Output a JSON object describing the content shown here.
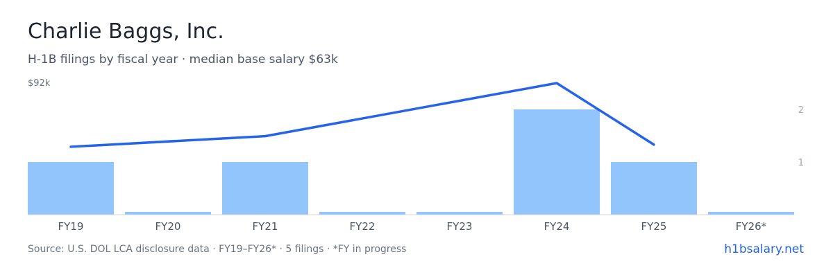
{
  "header": {
    "title": "Charlie Baggs, Inc.",
    "subtitle": "H-1B filings by fiscal year · median base salary $63k"
  },
  "footer": {
    "source": "Source: U.S. DOL LCA disclosure data · FY19–FY26* · 5 filings · *FY in progress",
    "site": "h1bsalary.net"
  },
  "colors": {
    "bar": "#93c5fd",
    "line": "#2563eb",
    "axis_text": "#6b7280",
    "right_axis_text": "#9ca3af",
    "baseline": "#d1d5db"
  },
  "chart_data": {
    "type": "bar",
    "categories": [
      "FY19",
      "FY20",
      "FY21",
      "FY22",
      "FY23",
      "FY24",
      "FY25",
      "FY26*"
    ],
    "series": [
      {
        "kind": "bar",
        "axis": "right",
        "values": [
          1,
          0,
          1,
          0,
          0,
          2,
          1,
          0
        ]
      },
      {
        "kind": "line",
        "axis": "left",
        "values": [
          62,
          null,
          67,
          null,
          null,
          92,
          63,
          null
        ]
      }
    ],
    "left_axis": {
      "max_label": "$92k",
      "min": 30,
      "max": 92
    },
    "right_axis": {
      "ticks": [
        1,
        2
      ],
      "min": 0,
      "max": 2.5
    },
    "grid": false
  }
}
